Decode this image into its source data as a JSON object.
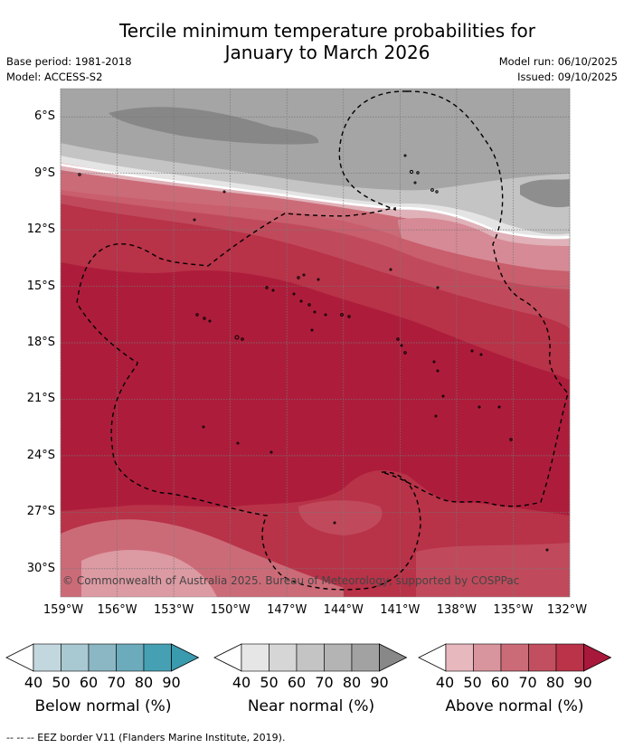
{
  "title": {
    "line1": "Tercile minimum temperature probabilities for",
    "line2": "January to March 2026"
  },
  "meta": {
    "base_period": "Base period: 1981-2018",
    "model": "Model: ACCESS-S2",
    "model_run": "Model run: 06/10/2025",
    "issued": "Issued: 09/10/2025"
  },
  "map": {
    "copyright": "© Commonwealth of Australia 2025. Bureau of Meteorology, supported by COSPPac",
    "lat_labels": [
      "6°S",
      "9°S",
      "12°S",
      "15°S",
      "18°S",
      "21°S",
      "24°S",
      "27°S",
      "30°S"
    ],
    "lon_labels": [
      "159°W",
      "156°W",
      "153°W",
      "150°W",
      "147°W",
      "144°W",
      "141°W",
      "138°W",
      "135°W",
      "132°W"
    ],
    "extent": {
      "lon": [
        -159,
        -132
      ],
      "lat": [
        -4.5,
        -31.5
      ]
    }
  },
  "legends": [
    {
      "label": "Below normal (%)",
      "ticks": [
        "40",
        "50",
        "60",
        "70",
        "80",
        "90"
      ],
      "colors": [
        "#ffffff",
        "#c3d8de",
        "#a9c9d2",
        "#8bb7c4",
        "#6cabbc",
        "#46a0b3",
        "#3a9aae"
      ]
    },
    {
      "label": "Near normal (%)",
      "ticks": [
        "40",
        "50",
        "60",
        "70",
        "80",
        "90"
      ],
      "colors": [
        "#ffffff",
        "#e6e6e6",
        "#d6d6d6",
        "#c4c4c4",
        "#b4b4b4",
        "#a2a2a2",
        "#888888"
      ]
    },
    {
      "label": "Above normal (%)",
      "ticks": [
        "40",
        "50",
        "60",
        "70",
        "80",
        "90"
      ],
      "colors": [
        "#ffffff",
        "#e8b8bf",
        "#d9959e",
        "#cc6b78",
        "#c14f5f",
        "#ba3349",
        "#a8183a"
      ]
    }
  ],
  "footer": "--  --  -- EEZ border V11 (Flanders Marine Institute, 2019)."
}
